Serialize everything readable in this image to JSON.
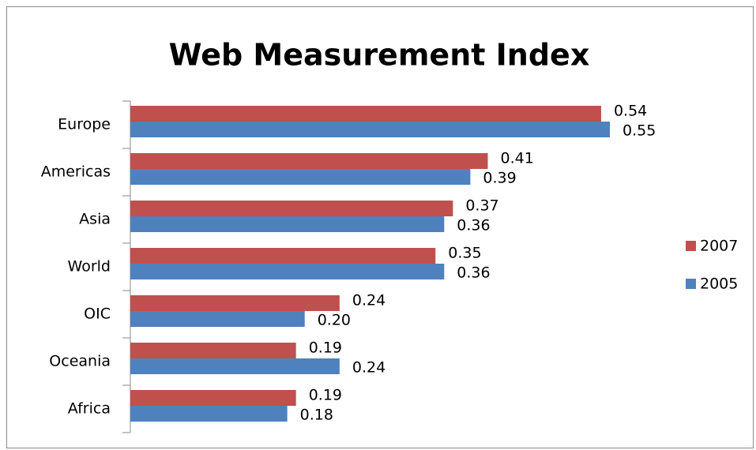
{
  "chart_data": {
    "type": "bar",
    "orientation": "horizontal",
    "title": "Web Measurement Index",
    "categories": [
      "Europe",
      "Americas",
      "Asia",
      "World",
      "OIC",
      "Oceania",
      "Africa"
    ],
    "series": [
      {
        "name": "2007",
        "color": "#c0504d",
        "values": [
          0.54,
          0.41,
          0.37,
          0.35,
          0.24,
          0.19,
          0.19
        ],
        "value_labels": [
          "0.54",
          "0.41",
          "0.37",
          "0.35",
          "0.24",
          "0.19",
          "0.19"
        ]
      },
      {
        "name": "2005",
        "color": "#4f81bd",
        "values": [
          0.55,
          0.39,
          0.36,
          0.36,
          0.2,
          0.24,
          0.18
        ],
        "value_labels": [
          "0.55",
          "0.39",
          "0.36",
          "0.36",
          "0.20",
          "0.24",
          "0.18"
        ]
      }
    ],
    "legend": "right"
  }
}
